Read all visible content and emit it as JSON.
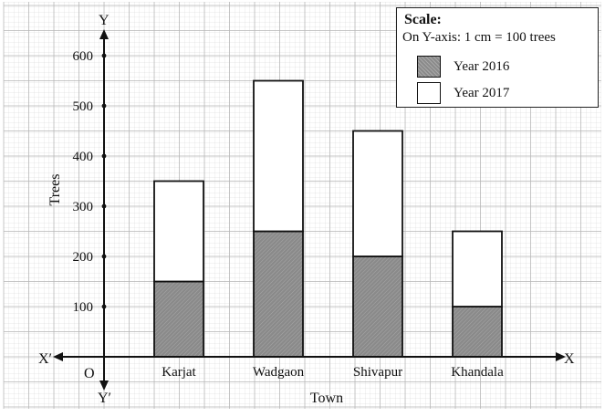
{
  "chart_data": {
    "type": "bar",
    "stacked": true,
    "categories": [
      "Karjat",
      "Wadgaon",
      "Shivapur",
      "Khandala"
    ],
    "series": [
      {
        "name": "Year 2016",
        "values": [
          150,
          250,
          200,
          100
        ],
        "color": "#8a8a8a"
      },
      {
        "name": "Year 2017",
        "values": [
          200,
          300,
          250,
          150
        ],
        "color": "#ffffff"
      }
    ],
    "ylim": [
      0,
      600
    ],
    "yticks": [
      100,
      200,
      300,
      400,
      500,
      600
    ],
    "xlabel": "Town",
    "ylabel": "Trees",
    "grid": true,
    "legend_position": "top-right",
    "axis_markers": {
      "x_pos": "X",
      "x_neg": "X′",
      "y_pos": "Y",
      "y_neg": "Y′",
      "origin": "O"
    }
  },
  "legend": {
    "title": "Scale:",
    "scale_text": "On Y-axis: 1 cm = 100 trees"
  }
}
